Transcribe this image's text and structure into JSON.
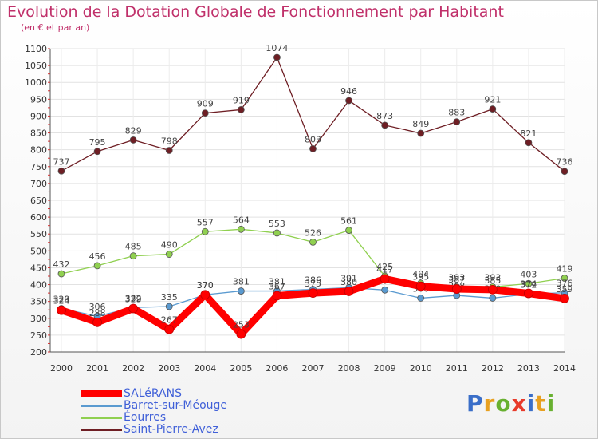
{
  "chart_data": {
    "type": "line",
    "title": "Evolution de la Dotation Globale de Fonctionnement par Habitant",
    "subtitle": "(en € et par an)",
    "xlabel": "",
    "ylabel": "",
    "ylim": [
      200,
      1100
    ],
    "yticks": [
      200,
      250,
      300,
      350,
      400,
      450,
      500,
      550,
      600,
      650,
      700,
      750,
      800,
      850,
      900,
      950,
      1000,
      1050,
      1100
    ],
    "categories": [
      "2000",
      "2001",
      "2002",
      "2003",
      "2004",
      "2005",
      "2006",
      "2007",
      "2008",
      "2009",
      "2010",
      "2011",
      "2012",
      "2013",
      "2014"
    ],
    "grid": true,
    "legend_position": "bottom-left",
    "series": [
      {
        "name": "Saint-Pierre-Avez",
        "color": "#6e1e24",
        "values": [
          737,
          795,
          829,
          798,
          909,
          919,
          1074,
          803,
          946,
          873,
          849,
          883,
          921,
          821,
          736
        ]
      },
      {
        "name": "Éourres",
        "color": "#90d050",
        "values": [
          432,
          456,
          485,
          490,
          557,
          564,
          553,
          526,
          561,
          425,
          404,
          393,
          393,
          403,
          419
        ]
      },
      {
        "name": "Barret-sur-Méouge",
        "color": "#5a9ad0",
        "values": [
          329,
          306,
          332,
          335,
          370,
          381,
          381,
          386,
          391,
          384,
          360,
          368,
          360,
          372,
          376
        ]
      },
      {
        "name": "SALéRANS",
        "color": "#ff0000",
        "values": [
          324,
          288,
          329,
          267,
          370,
          253,
          367,
          375,
          380,
          417,
          395,
          387,
          385,
          374,
          359
        ]
      }
    ],
    "legend_order": [
      "SALéRANS",
      "Barret-sur-Méouge",
      "Éourres",
      "Saint-Pierre-Avez"
    ]
  },
  "brand": {
    "letters": [
      "P",
      "r",
      "o",
      "x",
      "i",
      "t",
      "i"
    ],
    "colors": [
      "#3a6ec8",
      "#e8a020",
      "#68b030",
      "#e83a2a",
      "#3a6ec8",
      "#e8a020",
      "#68b030"
    ]
  }
}
